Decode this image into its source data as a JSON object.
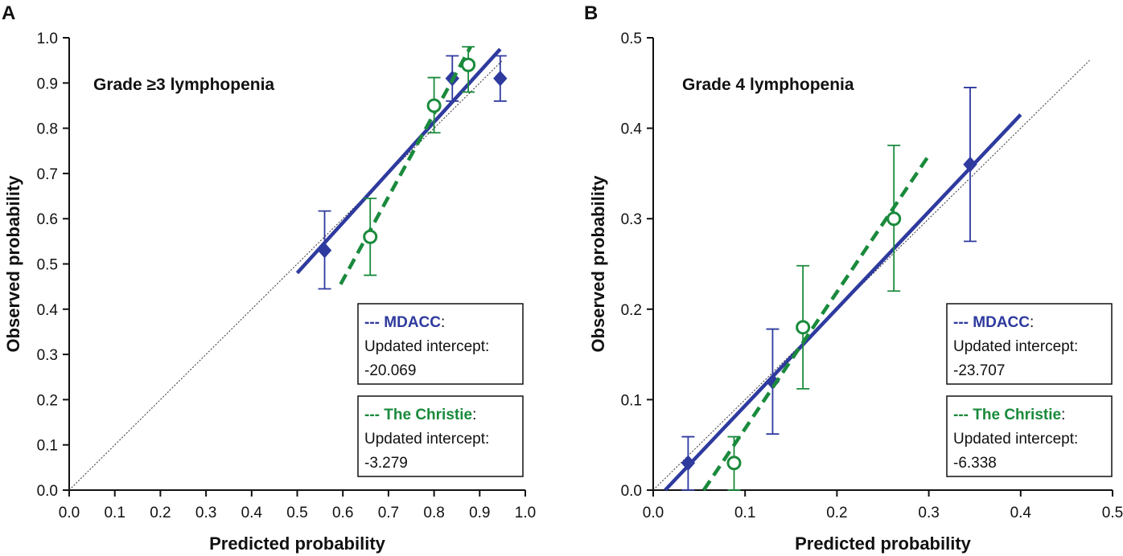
{
  "colors": {
    "mdacc": "#2e3a9e",
    "christie": "#1a8a3c",
    "axis": "#111111",
    "ref": "#333333"
  },
  "chart_data": [
    {
      "type": "scatter",
      "panel_label": "A",
      "title": "Grade ≥3 lymphopenia",
      "xlabel": "Predicted probability",
      "ylabel": "Observed probability",
      "xlim": [
        0,
        1.0
      ],
      "ylim": [
        0,
        1.0
      ],
      "x_ticks": [
        "0.0",
        "0.1",
        "0.2",
        "0.3",
        "0.4",
        "0.5",
        "0.6",
        "0.7",
        "0.8",
        "0.9",
        "1.0"
      ],
      "y_ticks": [
        "0.0",
        "0.1",
        "0.2",
        "0.3",
        "0.4",
        "0.5",
        "0.6",
        "0.7",
        "0.8",
        "0.9",
        "1.0"
      ],
      "reference_line": {
        "from": [
          0,
          0
        ],
        "to": [
          0.95,
          0.95
        ]
      },
      "series": [
        {
          "name": "MDACC",
          "marker": "diamond",
          "points": [
            {
              "x": 0.56,
              "y": 0.53,
              "lo": 0.445,
              "hi": 0.617
            },
            {
              "x": 0.84,
              "y": 0.91,
              "lo": 0.86,
              "hi": 0.96
            },
            {
              "x": 0.945,
              "y": 0.91,
              "lo": 0.86,
              "hi": 0.96
            }
          ],
          "fit": {
            "from": [
              0.5,
              0.48
            ],
            "to": [
              0.945,
              0.975
            ]
          }
        },
        {
          "name": "The Christie",
          "marker": "circle",
          "points": [
            {
              "x": 0.66,
              "y": 0.56,
              "lo": 0.475,
              "hi": 0.645
            },
            {
              "x": 0.8,
              "y": 0.85,
              "lo": 0.79,
              "hi": 0.912
            },
            {
              "x": 0.875,
              "y": 0.94,
              "lo": 0.88,
              "hi": 0.98
            }
          ],
          "fit": {
            "from": [
              0.595,
              0.455
            ],
            "to": [
              0.88,
              0.98
            ]
          }
        }
      ],
      "legend": [
        {
          "dashes": "---",
          "name": "MDACC",
          "colon": ":",
          "line2": "Updated intercept:",
          "value": "-20.069"
        },
        {
          "dashes": "---",
          "name": "The Christie",
          "colon": ":",
          "line2": "Updated intercept:",
          "value": "-3.279"
        }
      ]
    },
    {
      "type": "scatter",
      "panel_label": "B",
      "title": "Grade 4 lymphopenia",
      "xlabel": "Predicted probability",
      "ylabel": "Observed probability",
      "xlim": [
        0,
        0.5
      ],
      "ylim": [
        0,
        0.5
      ],
      "x_ticks": [
        "0.0",
        "0.1",
        "0.2",
        "0.3",
        "0.4",
        "0.5"
      ],
      "y_ticks": [
        "0.0",
        "0.1",
        "0.2",
        "0.3",
        "0.4",
        "0.5"
      ],
      "reference_line": {
        "from": [
          0,
          0
        ],
        "to": [
          0.475,
          0.475
        ]
      },
      "series": [
        {
          "name": "MDACC",
          "marker": "diamond",
          "points": [
            {
              "x": 0.038,
              "y": 0.03,
              "lo": 0.0,
              "hi": 0.059
            },
            {
              "x": 0.13,
              "y": 0.12,
              "lo": 0.062,
              "hi": 0.178
            },
            {
              "x": 0.345,
              "y": 0.36,
              "lo": 0.275,
              "hi": 0.445
            }
          ],
          "fit": {
            "from": [
              0.013,
              0.0
            ],
            "to": [
              0.4,
              0.415
            ]
          }
        },
        {
          "name": "The Christie",
          "marker": "circle",
          "points": [
            {
              "x": 0.088,
              "y": 0.03,
              "lo": 0.0,
              "hi": 0.059
            },
            {
              "x": 0.163,
              "y": 0.18,
              "lo": 0.112,
              "hi": 0.248
            },
            {
              "x": 0.262,
              "y": 0.3,
              "lo": 0.22,
              "hi": 0.381
            }
          ],
          "fit": {
            "from": [
              0.055,
              0.0
            ],
            "to": [
              0.3,
              0.37
            ]
          }
        }
      ],
      "legend": [
        {
          "dashes": "---",
          "name": "MDACC",
          "colon": ":",
          "line2": "Updated intercept:",
          "value": "-23.707"
        },
        {
          "dashes": "---",
          "name": "The Christie",
          "colon": ":",
          "line2": "Updated intercept:",
          "value": "-6.338"
        }
      ]
    }
  ]
}
